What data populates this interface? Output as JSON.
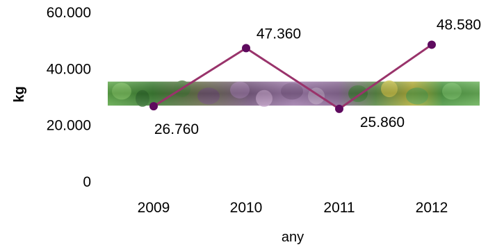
{
  "chart_data": {
    "type": "line",
    "title": "",
    "xlabel": "any",
    "ylabel": "kg",
    "ylim": [
      0,
      60000
    ],
    "y_ticks": [
      0,
      20000,
      40000,
      60000
    ],
    "y_tick_labels": [
      "0",
      "20.000",
      "40.000",
      "60.000"
    ],
    "categories": [
      "2009",
      "2010",
      "2011",
      "2012"
    ],
    "series": [
      {
        "values": [
          26760,
          47360,
          25860,
          48580
        ],
        "labels": [
          "26.760",
          "47.360",
          "25.860",
          "48.580"
        ],
        "color": "#99336b",
        "marker_color": "#5e0a5e"
      }
    ],
    "background_band": {
      "from": 27000,
      "to": 35500,
      "description_colors": [
        "#3f8a3a",
        "#6a8f4a",
        "#8b5b8e",
        "#a87fb5",
        "#4f9a45"
      ]
    },
    "grid": false,
    "legend": "none"
  }
}
